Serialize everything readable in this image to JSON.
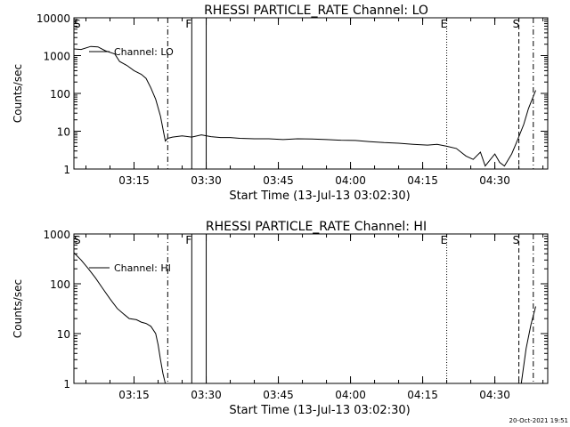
{
  "footer_timestamp": "20-Oct-2021 19:51",
  "chart_data": [
    {
      "type": "line",
      "title": "RHESSI PARTICLE_RATE Channel: LO",
      "xlabel": "Start Time (13-Jul-13 03:02:30)",
      "ylabel": "Counts/sec",
      "y_scale": "log",
      "xlim": [
        "03:02:30",
        "04:41:00"
      ],
      "ylim": [
        1,
        10000
      ],
      "x_ticks": [
        "03:15",
        "03:30",
        "03:45",
        "04:00",
        "04:15",
        "04:30"
      ],
      "y_ticks": [
        "1",
        "10",
        "100",
        "1000",
        "10000"
      ],
      "legend": "top-left",
      "series": [
        {
          "name": "Channel: LO",
          "x": [
            "03:02:30",
            "03:04:00",
            "03:06:00",
            "03:07:30",
            "03:09:00",
            "03:11:00",
            "03:12:00",
            "03:13:30",
            "03:15:00",
            "03:16:30",
            "03:17:30",
            "03:18:30",
            "03:19:30",
            "03:20:30",
            "03:21:30",
            "03:22:00",
            "03:23:00",
            "03:25:00",
            "03:27:00",
            "03:29:00",
            "03:31:00",
            "03:33:00",
            "03:35:00",
            "03:37:00",
            "03:40:00",
            "03:43:00",
            "03:46:00",
            "03:49:00",
            "03:52:00",
            "03:55:00",
            "03:58:00",
            "04:01:00",
            "04:04:00",
            "04:07:00",
            "04:10:00",
            "04:13:00",
            "04:16:00",
            "04:18:00",
            "04:20:00",
            "04:22:00",
            "04:24:00",
            "04:25:30",
            "04:27:00",
            "04:28:00",
            "04:30:00",
            "04:31:00",
            "04:32:00",
            "04:33:30",
            "04:34:30",
            "04:36:00",
            "04:37:00",
            "04:38:30"
          ],
          "values": [
            1500,
            1450,
            1750,
            1700,
            1350,
            1100,
            700,
            550,
            400,
            320,
            250,
            140,
            70,
            25,
            5.5,
            6.5,
            7.0,
            7.5,
            7.0,
            8.0,
            7.2,
            6.8,
            6.8,
            6.5,
            6.3,
            6.3,
            6.0,
            6.3,
            6.2,
            6.0,
            5.8,
            5.7,
            5.3,
            5.0,
            4.8,
            4.5,
            4.3,
            4.5,
            4.0,
            3.5,
            2.2,
            1.8,
            2.8,
            1.2,
            2.5,
            1.5,
            1.2,
            2.5,
            5,
            15,
            40,
            120
          ]
        }
      ],
      "markers": [
        {
          "label": "S",
          "time": "03:02:30",
          "style": "none"
        },
        {
          "label": "",
          "time": "03:22:00",
          "style": "dash-dot"
        },
        {
          "label": "F",
          "time": "03:27:00",
          "style": "solid"
        },
        {
          "label": "",
          "time": "03:30:00",
          "style": "solid"
        },
        {
          "label": "E",
          "time": "04:20:00",
          "style": "dotted"
        },
        {
          "label": "S",
          "time": "04:35:00",
          "style": "dashed"
        },
        {
          "label": "",
          "time": "04:38:00",
          "style": "dash-dot"
        }
      ]
    },
    {
      "type": "line",
      "title": "RHESSI PARTICLE_RATE Channel: HI",
      "xlabel": "Start Time (13-Jul-13 03:02:30)",
      "ylabel": "Counts/sec",
      "y_scale": "log",
      "xlim": [
        "03:02:30",
        "04:41:00"
      ],
      "ylim": [
        1,
        1000
      ],
      "x_ticks": [
        "03:15",
        "03:30",
        "03:45",
        "04:00",
        "04:15",
        "04:30"
      ],
      "y_ticks": [
        "1",
        "10",
        "100",
        "1000"
      ],
      "legend": "top-left",
      "series": [
        {
          "name": "Channel: HI",
          "x": [
            "03:02:30",
            "03:04:00",
            "03:05:30",
            "03:07:00",
            "03:08:30",
            "03:10:00",
            "03:11:30",
            "03:13:00",
            "03:14:00",
            "03:15:30",
            "03:16:30",
            "03:17:30",
            "03:18:30",
            "03:19:30",
            "03:20:00",
            "03:20:30",
            "03:21:00",
            "03:21:30",
            "03:35:00",
            "04:35:30",
            "04:36:30",
            "04:37:30",
            "04:38:30"
          ],
          "values": [
            420,
            300,
            200,
            130,
            80,
            50,
            32,
            24,
            20,
            19,
            17,
            16,
            14,
            10,
            6,
            3,
            1.6,
            1,
            null,
            1,
            5,
            15,
            35
          ]
        }
      ],
      "markers": [
        {
          "label": "S",
          "time": "03:02:30",
          "style": "none"
        },
        {
          "label": "",
          "time": "03:22:00",
          "style": "dash-dot"
        },
        {
          "label": "F",
          "time": "03:27:00",
          "style": "solid"
        },
        {
          "label": "",
          "time": "03:30:00",
          "style": "solid"
        },
        {
          "label": "E",
          "time": "04:20:00",
          "style": "dotted"
        },
        {
          "label": "S",
          "time": "04:35:00",
          "style": "dashed"
        },
        {
          "label": "",
          "time": "04:38:00",
          "style": "dash-dot"
        }
      ]
    }
  ]
}
